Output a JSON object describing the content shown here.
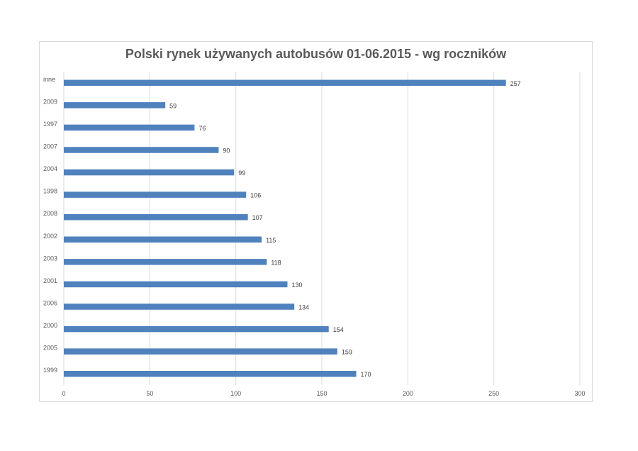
{
  "chart_data": {
    "type": "bar",
    "orientation": "horizontal",
    "title": "Polski rynek używanych autobusów 01-06.2015 - wg roczników",
    "xlabel": "",
    "ylabel": "",
    "categories": [
      "inne",
      "2009",
      "1997",
      "2007",
      "2004",
      "1998",
      "2008",
      "2002",
      "2003",
      "2001",
      "2006",
      "2000",
      "2005",
      "1999"
    ],
    "values": [
      257,
      59,
      76,
      90,
      99,
      106,
      107,
      115,
      118,
      130,
      134,
      154,
      159,
      170
    ],
    "xlim": [
      0,
      300
    ],
    "xticks": [
      0,
      50,
      100,
      150,
      200,
      250,
      300
    ],
    "grid": true,
    "legend": "none",
    "bar_color": "#4f81bd"
  }
}
